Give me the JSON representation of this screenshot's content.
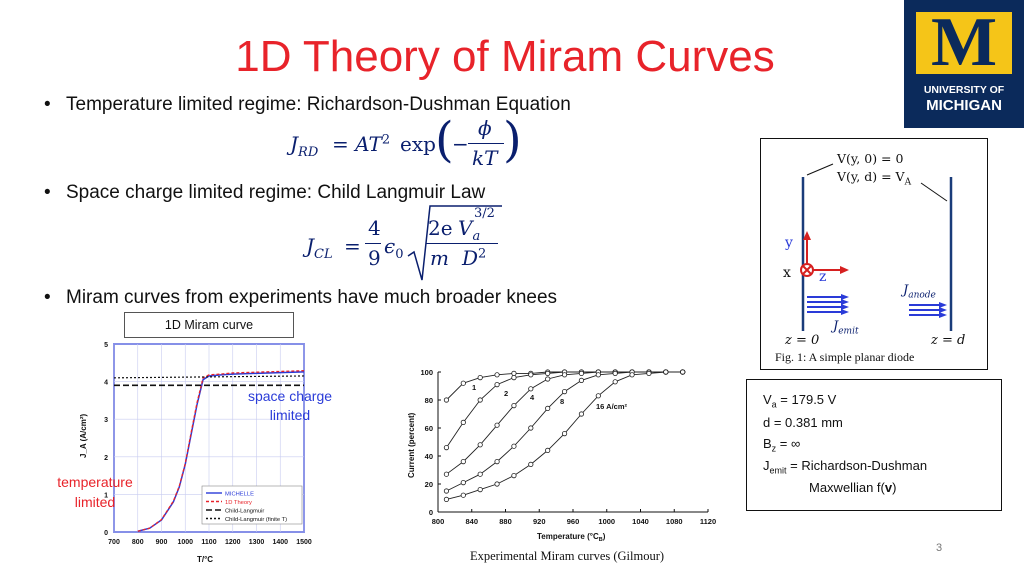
{
  "slide": {
    "title": "1D Theory of Miram Curves",
    "page_number": "3"
  },
  "logo": {
    "letter": "M",
    "line1": "UNIVERSITY OF",
    "line2": "MICHIGAN"
  },
  "bullets": [
    {
      "text": "Temperature limited regime: Richardson-Dushman Equation"
    },
    {
      "text": "Space charge limited regime: Child Langmuir Law"
    },
    {
      "text": "Miram curves from experiments have much broader knees"
    }
  ],
  "equations": {
    "rd": {
      "lhs": "J",
      "lhs_sub": "RD",
      "rhs": "= AT",
      "sup": "2",
      "exp": "exp",
      "num": "ϕ",
      "den": "kT"
    },
    "cl": {
      "lhs": "J",
      "lhs_sub": "CL",
      "eq": "=",
      "frac_num": "4",
      "frac_den": "9",
      "eps": "ϵ",
      "eps_sub": "0",
      "num1": "2e",
      "den1": "m",
      "va": "V",
      "va_sub": "a",
      "va_sup": "3/2",
      "den2": "D",
      "den2_sup": "2"
    }
  },
  "diode": {
    "bc1": "V(y, 0) = 0",
    "bc2": "V(y, d) = V",
    "bc2_sub": "A",
    "axis_y": "y",
    "axis_x": "x",
    "axis_z": "z",
    "j_anode": "J",
    "j_anode_sub": "anode",
    "j_emit": "J",
    "j_emit_sub": "emit",
    "z0": "z = 0",
    "zd": "z = d",
    "caption": "Fig. 1: A simple planar diode"
  },
  "params": {
    "va": "V",
    "va_sub": "a",
    "va_val": " = 179.5 V",
    "d": "d = 0.381 mm",
    "bz": "B",
    "bz_sub": "z",
    "bz_val": " = ∞",
    "jemit": "J",
    "jemit_sub": "emit",
    "jemit_val": " = Richardson-Dushman",
    "maxwell": "Maxwellian f(",
    "maxwell_v": "v",
    "maxwell_end": ")"
  },
  "miram_label": "1D Miram curve",
  "annotations": {
    "space_charge": [
      "space charge",
      "limited"
    ],
    "temperature": [
      "temperature",
      "limited"
    ]
  },
  "chart_data": [
    {
      "type": "line",
      "title": "",
      "xlabel": "T/°C",
      "ylabel": "J_A (A/cm²)",
      "xlim": [
        700,
        1500
      ],
      "ylim": [
        0,
        5
      ],
      "xticks": [
        "700",
        "800",
        "900",
        "1000",
        "1100",
        "1200",
        "1300",
        "1400",
        "1500"
      ],
      "yticks": [
        "0",
        "1",
        "2",
        "3",
        "4",
        "5"
      ],
      "grid": true,
      "legend_position": "bottom-right",
      "series": [
        {
          "name": "MICHELLE",
          "color": "#2a3bd8",
          "x": [
            800,
            850,
            900,
            950,
            975,
            1000,
            1025,
            1050,
            1075,
            1100,
            1150,
            1200,
            1300,
            1400,
            1500
          ],
          "y": [
            0.02,
            0.1,
            0.32,
            0.8,
            1.2,
            1.8,
            2.6,
            3.4,
            4.05,
            4.15,
            4.18,
            4.2,
            4.22,
            4.24,
            4.26
          ]
        },
        {
          "name": "1D Theory",
          "color": "#e8232a",
          "x": [
            800,
            850,
            900,
            950,
            975,
            1000,
            1025,
            1050,
            1075,
            1100,
            1150,
            1200,
            1300,
            1400,
            1500
          ],
          "y": [
            0.02,
            0.1,
            0.33,
            0.82,
            1.22,
            1.82,
            2.65,
            3.45,
            4.1,
            4.18,
            4.2,
            4.23,
            4.25,
            4.27,
            4.29
          ]
        },
        {
          "name": "Child-Langmuir",
          "color": "#111111",
          "x": [
            700,
            1500
          ],
          "y": [
            3.9,
            3.9
          ]
        },
        {
          "name": "Child-Langmuir (finite T)",
          "color": "#111111",
          "x": [
            700,
            1500
          ],
          "y": [
            4.1,
            4.15
          ]
        }
      ]
    },
    {
      "type": "line",
      "title": "",
      "xlabel": "Temperature (°C",
      "xlabel_sub": "B",
      "xlabel_end": ")",
      "ylabel": "Current (percent)",
      "xlim": [
        800,
        1120
      ],
      "ylim": [
        0,
        100
      ],
      "xticks": [
        "800",
        "840",
        "880",
        "920",
        "960",
        "1000",
        "1040",
        "1080",
        "1120"
      ],
      "yticks": [
        "0",
        "20",
        "40",
        "60",
        "80",
        "100"
      ],
      "grid": false,
      "curve_labels": [
        "1",
        "2",
        "4",
        "8",
        "16 A/cm²"
      ],
      "series": [
        {
          "name": "1",
          "x": [
            810,
            830,
            850,
            870,
            890,
            910,
            930,
            950,
            970,
            990,
            1010,
            1030,
            1050,
            1070,
            1090
          ],
          "y": [
            80,
            92,
            96,
            98,
            99,
            99,
            100,
            100,
            100,
            100,
            100,
            100,
            100,
            100,
            100
          ]
        },
        {
          "name": "2",
          "x": [
            810,
            830,
            850,
            870,
            890,
            910,
            930,
            950,
            970,
            990,
            1010,
            1030,
            1050,
            1070,
            1090
          ],
          "y": [
            46,
            64,
            80,
            91,
            96,
            98,
            99,
            100,
            100,
            100,
            100,
            100,
            100,
            100,
            100
          ]
        },
        {
          "name": "4",
          "x": [
            810,
            830,
            850,
            870,
            890,
            910,
            930,
            950,
            970,
            990,
            1010,
            1030,
            1050,
            1070,
            1090
          ],
          "y": [
            27,
            36,
            48,
            62,
            76,
            88,
            95,
            98,
            99,
            100,
            100,
            100,
            100,
            100,
            100
          ]
        },
        {
          "name": "8",
          "x": [
            810,
            830,
            850,
            870,
            890,
            910,
            930,
            950,
            970,
            990,
            1010,
            1030,
            1050,
            1070,
            1090
          ],
          "y": [
            15,
            21,
            27,
            36,
            47,
            60,
            74,
            86,
            94,
            98,
            99,
            100,
            100,
            100,
            100
          ]
        },
        {
          "name": "16 A/cm²",
          "x": [
            810,
            830,
            850,
            870,
            890,
            910,
            930,
            950,
            970,
            990,
            1010,
            1030,
            1050,
            1070,
            1090
          ],
          "y": [
            9,
            12,
            16,
            20,
            26,
            34,
            44,
            56,
            70,
            83,
            93,
            98,
            99,
            100,
            100
          ]
        }
      ],
      "caption": "Experimental Miram curves (Gilmour)"
    }
  ]
}
